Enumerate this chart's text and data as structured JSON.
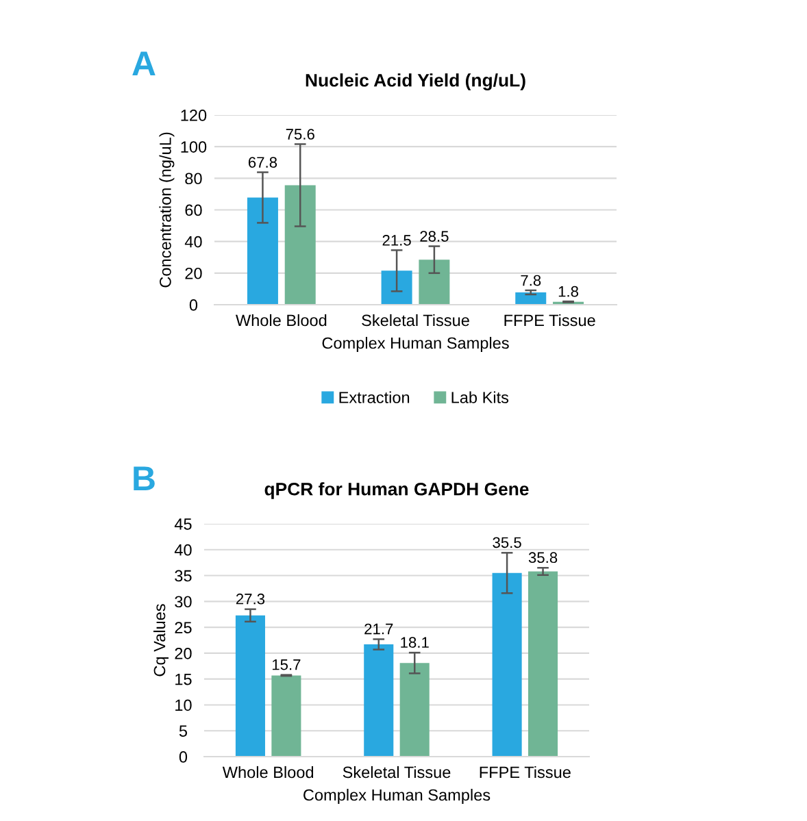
{
  "chart_data": [
    {
      "type": "bar",
      "title": "Nucleic Acid Yield (ng/uL)",
      "xlabel": "Complex Human Samples",
      "ylabel": "Concentration (ng/uL)",
      "annotations": [
        "A"
      ],
      "categories": [
        "Whole Blood",
        "Skeletal Tissue",
        "FFPE Tissue"
      ],
      "series": [
        {
          "name": "Extraction",
          "color": "#29a8e0",
          "values": [
            67.8,
            21.5,
            7.8
          ],
          "errors": [
            16,
            13,
            1.3
          ]
        },
        {
          "name": "Lab Kits",
          "color": "#70b595",
          "values": [
            75.6,
            28.5,
            1.8
          ],
          "errors": [
            26,
            8.5,
            0.3
          ]
        }
      ],
      "ylim": [
        0,
        120
      ],
      "yticks": [
        0,
        20,
        40,
        60,
        80,
        100,
        120
      ],
      "grid": "y",
      "legend": "bottom",
      "data_labels": true
    },
    {
      "type": "bar",
      "title": "qPCR for Human GAPDH Gene",
      "xlabel": "Complex Human Samples",
      "ylabel": "Cq Values",
      "annotations": [
        "B"
      ],
      "categories": [
        "Whole Blood",
        "Skeletal Tissue",
        "FFPE Tissue"
      ],
      "series": [
        {
          "color": "#29a8e0",
          "values": [
            27.3,
            21.7,
            35.5
          ],
          "errors": [
            1.2,
            1.0,
            3.9
          ]
        },
        {
          "color": "#70b595",
          "values": [
            15.7,
            18.1,
            35.8
          ],
          "errors": [
            0.1,
            2.0,
            0.7
          ]
        }
      ],
      "ylim": [
        0,
        45
      ],
      "yticks": [
        0,
        5,
        10,
        15,
        20,
        25,
        30,
        35,
        40,
        45
      ],
      "grid": "y",
      "data_labels": true
    }
  ]
}
